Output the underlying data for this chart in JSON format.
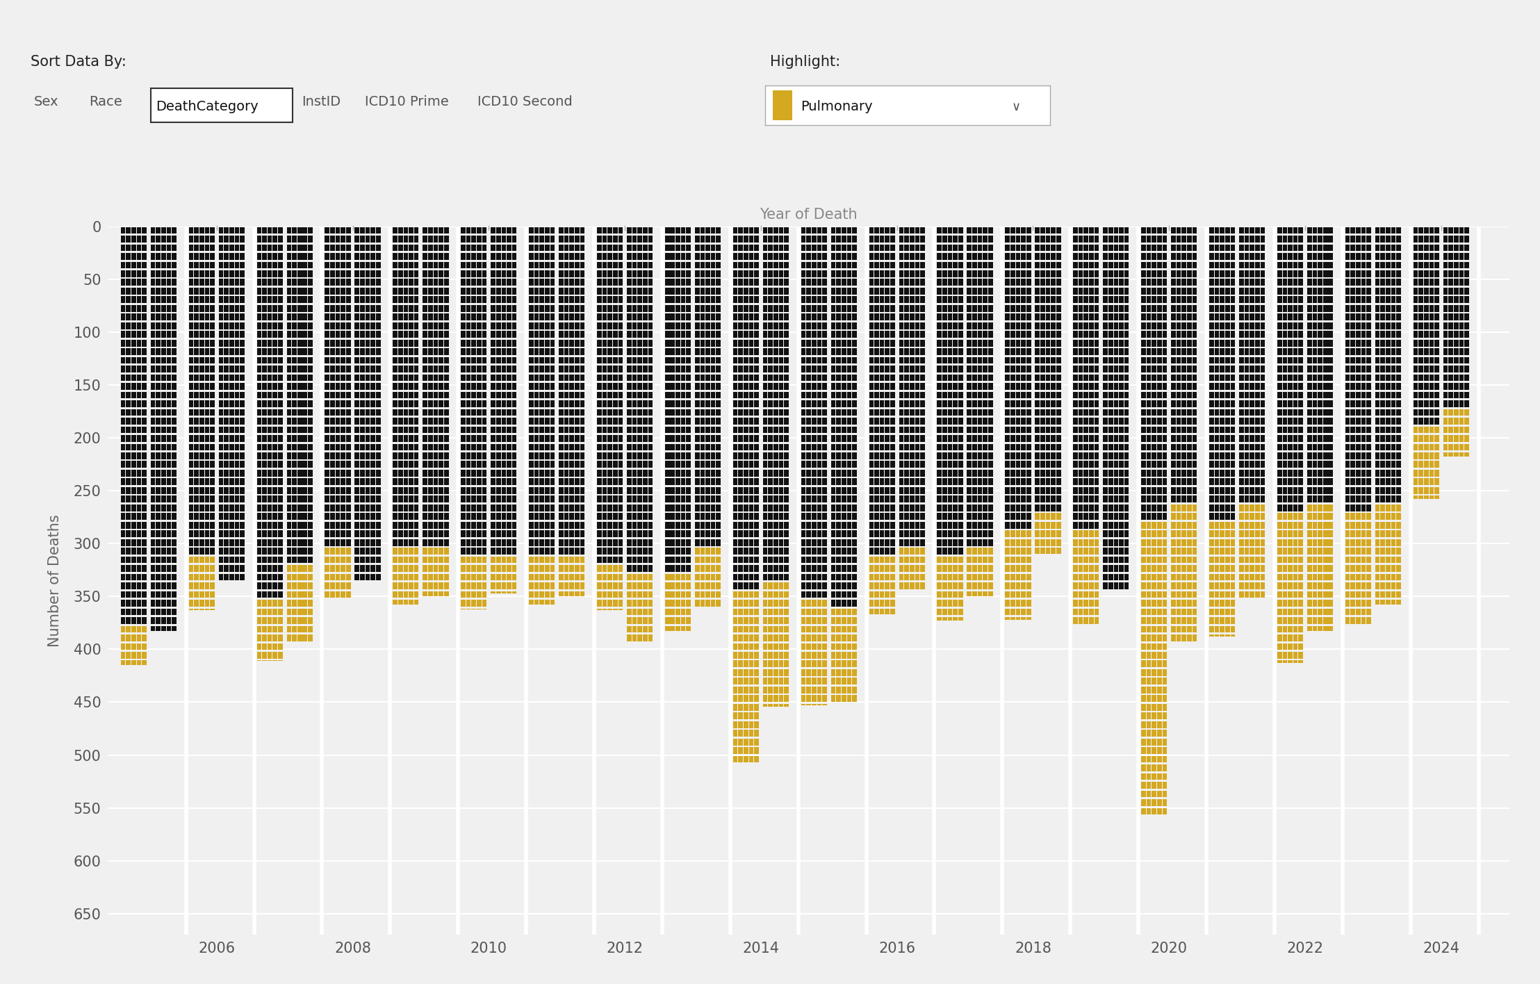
{
  "title": "Year of Death",
  "ylabel": "Number of Deaths",
  "background_color": "#f0f0f0",
  "bar_color": "#111111",
  "highlight_color": "#d4a820",
  "years": [
    2005,
    2005,
    2006,
    2006,
    2007,
    2007,
    2008,
    2008,
    2009,
    2009,
    2010,
    2010,
    2011,
    2011,
    2012,
    2012,
    2013,
    2013,
    2014,
    2014,
    2015,
    2015,
    2016,
    2016,
    2017,
    2017,
    2018,
    2018,
    2019,
    2019,
    2020,
    2020,
    2021,
    2021,
    2022,
    2022,
    2023,
    2023,
    2024,
    2024
  ],
  "total_heights": [
    415,
    383,
    363,
    337,
    410,
    394,
    353,
    337,
    358,
    350,
    362,
    347,
    358,
    350,
    363,
    394,
    383,
    360,
    509,
    454,
    453,
    450,
    367,
    343,
    373,
    350,
    372,
    310,
    378,
    345,
    557,
    394,
    388,
    353,
    413,
    383,
    378,
    358,
    258,
    218
  ],
  "highlight_starts": [
    375,
    999,
    310,
    999,
    348,
    318,
    305,
    999,
    305,
    305,
    308,
    308,
    308,
    308,
    318,
    328,
    328,
    305,
    340,
    338,
    348,
    358,
    308,
    303,
    308,
    303,
    290,
    270,
    290,
    999,
    278,
    262,
    276,
    262,
    272,
    262,
    272,
    262,
    192,
    175
  ],
  "ylim": [
    0,
    670
  ],
  "yticks": [
    0,
    50,
    100,
    150,
    200,
    250,
    300,
    350,
    400,
    450,
    500,
    550,
    600,
    650
  ],
  "x_tick_years": [
    2006,
    2008,
    2010,
    2012,
    2014,
    2016,
    2018,
    2020,
    2022,
    2024
  ],
  "year_set": [
    2005,
    2006,
    2007,
    2008,
    2009,
    2010,
    2011,
    2012,
    2013,
    2014,
    2015,
    2016,
    2017,
    2018,
    2019,
    2020,
    2021,
    2022,
    2023,
    2024
  ]
}
